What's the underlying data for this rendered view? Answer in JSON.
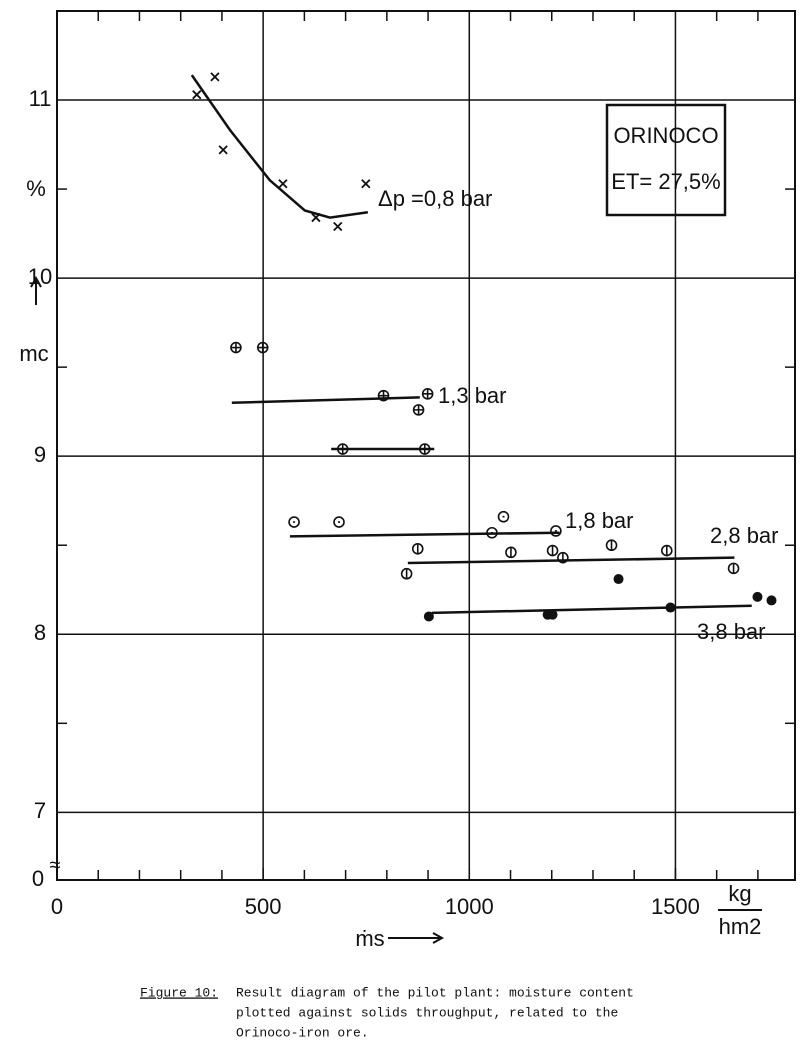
{
  "chart_data": {
    "type": "scatter",
    "xlim": [
      0,
      1790
    ],
    "ylim": [
      6.62,
      11.5
    ],
    "xticks": [
      0,
      500,
      1000,
      1500
    ],
    "yticks": [
      7,
      8,
      9,
      10,
      11
    ],
    "xminorticks": [
      100,
      200,
      300,
      400,
      600,
      700,
      800,
      900,
      1100,
      1200,
      1300,
      1400,
      1600,
      1700
    ],
    "yminorticks": [
      7.5,
      8.5,
      9.5,
      10.5
    ],
    "grid": true,
    "y_break_label": "0",
    "y_label_unit": "%",
    "y_label": "mc",
    "x_label": "ṁs",
    "x_unit_numerator": "kg",
    "x_unit_denominator": "hm2",
    "box_lines": [
      "ORINOCO",
      "ET= 27,5%"
    ],
    "series": [
      {
        "name": "Δp =0,8 bar",
        "marker": "x",
        "color": "#111",
        "x": [
          339,
          383,
          403,
          548,
          628,
          681,
          749
        ],
        "y": [
          11.03,
          11.13,
          10.72,
          10.53,
          10.34,
          10.29,
          10.53
        ],
        "fit": [
          {
            "x": [
              327,
              420,
              516,
              601,
              662,
              754
            ],
            "y": [
              11.14,
              10.83,
              10.55,
              10.38,
              10.34,
              10.37
            ]
          }
        ]
      },
      {
        "name": "1,3 bar",
        "marker": "circle-plus",
        "color": "#111",
        "x": [
          434,
          499,
          792,
          877,
          899,
          693,
          892
        ],
        "y": [
          9.61,
          9.61,
          9.34,
          9.26,
          9.35,
          9.04,
          9.04
        ],
        "fit": [
          {
            "x": [
              424,
              880
            ],
            "y": [
              9.3,
              9.33
            ]
          },
          {
            "x": [
              665,
              915
            ],
            "y": [
              9.04,
              9.04
            ]
          }
        ]
      },
      {
        "name": "1,8 bar",
        "marker": "circle-dot",
        "color": "#111",
        "x": [
          575,
          684,
          1055,
          1083,
          1210
        ],
        "y": [
          8.63,
          8.63,
          8.57,
          8.66,
          8.58
        ],
        "fit": [
          {
            "x": [
              565,
              1219
            ],
            "y": [
              8.55,
              8.57
            ]
          }
        ]
      },
      {
        "name": "2,8 bar",
        "marker": "circle-bar",
        "color": "#111",
        "x": [
          848,
          875,
          1101,
          1202,
          1227,
          1345,
          1479,
          1641
        ],
        "y": [
          8.34,
          8.48,
          8.46,
          8.47,
          8.43,
          8.5,
          8.47,
          8.37
        ],
        "fit": [
          {
            "x": [
              851,
              1643
            ],
            "y": [
              8.4,
              8.43
            ]
          }
        ]
      },
      {
        "name": "3,8 bar",
        "marker": "filled",
        "color": "#111",
        "x": [
          902,
          1190,
          1202,
          1362,
          1488,
          1699,
          1733
        ],
        "y": [
          8.1,
          8.11,
          8.11,
          8.31,
          8.15,
          8.21,
          8.19
        ],
        "fit": [
          {
            "x": [
              909,
              1685
            ],
            "y": [
              8.12,
              8.16
            ]
          }
        ]
      }
    ],
    "caption_label": "Figure 10:",
    "caption_lines": [
      "Result diagram of the pilot plant: moisture content",
      "plotted against solids throughput, related to the",
      "Orinoco-iron ore."
    ]
  }
}
